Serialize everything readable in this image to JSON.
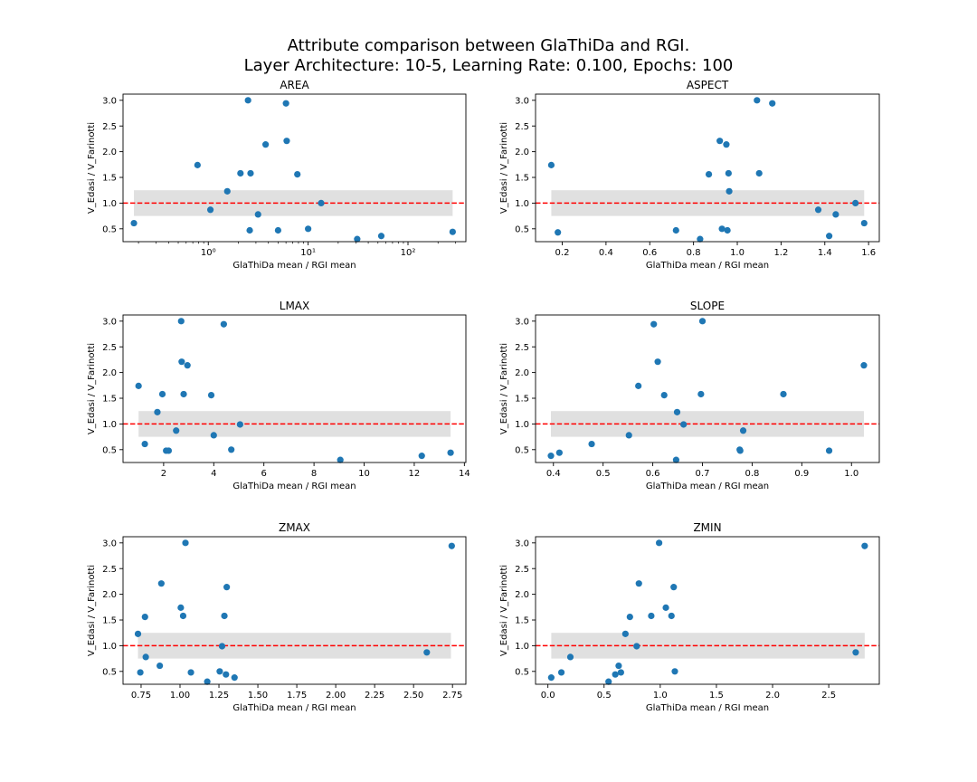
{
  "figure": {
    "title_lines": [
      "Attribute comparison between GlaThiDa and RGI.",
      "Layer Architecture: 10-5, Learning Rate: 0.100, Epochs: 100"
    ]
  },
  "colors": {
    "points": "#1f77b4",
    "reference_line": "#ff0000",
    "band": "#e0e0e0"
  },
  "chart_data": [
    {
      "type": "scatter",
      "title": "AREA",
      "xlabel": "GlaThiDa mean / RGI mean",
      "ylabel": "V_Edasi / V_Farinotti",
      "xscale": "log",
      "xlim": [
        0.14,
        380
      ],
      "ylim": [
        0.25,
        3.12
      ],
      "xticks": [
        1,
        10,
        100
      ],
      "xticklabels": [
        "10⁰",
        "10¹",
        "10²"
      ],
      "yticks": [
        0.5,
        1.0,
        1.5,
        2.0,
        2.5,
        3.0
      ],
      "yticklabels": [
        "0.5",
        "1.0",
        "1.5",
        "2.0",
        "2.5",
        "3.0"
      ],
      "reference_line": 1.0,
      "band": {
        "y": [
          0.75,
          1.25
        ],
        "x": [
          0.18,
          280
        ]
      },
      "points": [
        {
          "x": 0.18,
          "y": 0.61
        },
        {
          "x": 0.78,
          "y": 1.74
        },
        {
          "x": 1.05,
          "y": 0.87
        },
        {
          "x": 1.55,
          "y": 1.23
        },
        {
          "x": 2.1,
          "y": 1.58
        },
        {
          "x": 2.5,
          "y": 3.0
        },
        {
          "x": 2.65,
          "y": 1.58
        },
        {
          "x": 2.6,
          "y": 0.47
        },
        {
          "x": 3.15,
          "y": 0.78
        },
        {
          "x": 3.75,
          "y": 2.14
        },
        {
          "x": 5.0,
          "y": 0.47
        },
        {
          "x": 6.0,
          "y": 2.94
        },
        {
          "x": 6.1,
          "y": 2.21
        },
        {
          "x": 7.8,
          "y": 1.56
        },
        {
          "x": 10.0,
          "y": 0.5
        },
        {
          "x": 13.5,
          "y": 1.0
        },
        {
          "x": 31,
          "y": 0.3
        },
        {
          "x": 54,
          "y": 0.36
        },
        {
          "x": 280,
          "y": 0.44
        }
      ]
    },
    {
      "type": "scatter",
      "title": "ASPECT",
      "xlabel": "GlaThiDa mean / RGI mean",
      "ylabel": "V_Edasi / V_Farinotti",
      "xscale": "linear",
      "xlim": [
        0.078,
        1.649
      ],
      "ylim": [
        0.25,
        3.12
      ],
      "xticks": [
        0.2,
        0.4,
        0.6,
        0.8,
        1.0,
        1.2,
        1.4,
        1.6
      ],
      "xticklabels": [
        "0.2",
        "0.4",
        "0.6",
        "0.8",
        "1.0",
        "1.2",
        "1.4",
        "1.6"
      ],
      "yticks": [
        0.5,
        1.0,
        1.5,
        2.0,
        2.5,
        3.0
      ],
      "yticklabels": [
        "0.5",
        "1.0",
        "1.5",
        "2.0",
        "2.5",
        "3.0"
      ],
      "reference_line": 1.0,
      "band": {
        "y": [
          0.75,
          1.25
        ],
        "x": [
          0.15,
          1.58
        ]
      },
      "points": [
        {
          "x": 0.15,
          "y": 1.74
        },
        {
          "x": 0.18,
          "y": 0.43
        },
        {
          "x": 0.72,
          "y": 0.47
        },
        {
          "x": 0.83,
          "y": 0.3
        },
        {
          "x": 0.87,
          "y": 1.56
        },
        {
          "x": 0.92,
          "y": 2.21
        },
        {
          "x": 0.93,
          "y": 0.5
        },
        {
          "x": 0.95,
          "y": 2.14
        },
        {
          "x": 0.955,
          "y": 0.47
        },
        {
          "x": 0.96,
          "y": 1.58
        },
        {
          "x": 0.963,
          "y": 1.23
        },
        {
          "x": 1.09,
          "y": 3.0
        },
        {
          "x": 1.1,
          "y": 1.58
        },
        {
          "x": 1.16,
          "y": 2.94
        },
        {
          "x": 1.37,
          "y": 0.87
        },
        {
          "x": 1.42,
          "y": 0.36
        },
        {
          "x": 1.45,
          "y": 0.78
        },
        {
          "x": 1.54,
          "y": 1.0
        },
        {
          "x": 1.58,
          "y": 0.61
        }
      ]
    },
    {
      "type": "scatter",
      "title": "LMAX",
      "xlabel": "GlaThiDa mean / RGI mean",
      "ylabel": "V_Edasi / V_Farinotti",
      "xscale": "linear",
      "xlim": [
        0.38,
        14.06
      ],
      "ylim": [
        0.25,
        3.12
      ],
      "xticks": [
        2,
        4,
        6,
        8,
        10,
        12,
        14
      ],
      "xticklabels": [
        "2",
        "4",
        "6",
        "8",
        "10",
        "12",
        "14"
      ],
      "yticks": [
        0.5,
        1.0,
        1.5,
        2.0,
        2.5,
        3.0
      ],
      "yticklabels": [
        "0.5",
        "1.0",
        "1.5",
        "2.0",
        "2.5",
        "3.0"
      ],
      "reference_line": 1.0,
      "band": {
        "y": [
          0.75,
          1.25
        ],
        "x": [
          1.0,
          13.45
        ]
      },
      "points": [
        {
          "x": 1.0,
          "y": 1.74
        },
        {
          "x": 1.25,
          "y": 0.61
        },
        {
          "x": 1.75,
          "y": 1.23
        },
        {
          "x": 1.95,
          "y": 1.58
        },
        {
          "x": 2.1,
          "y": 0.48
        },
        {
          "x": 2.2,
          "y": 0.48
        },
        {
          "x": 2.5,
          "y": 0.87
        },
        {
          "x": 2.7,
          "y": 3.0
        },
        {
          "x": 2.72,
          "y": 2.21
        },
        {
          "x": 2.8,
          "y": 1.58
        },
        {
          "x": 2.95,
          "y": 2.14
        },
        {
          "x": 3.9,
          "y": 1.56
        },
        {
          "x": 4.0,
          "y": 0.78
        },
        {
          "x": 4.4,
          "y": 2.94
        },
        {
          "x": 4.7,
          "y": 0.5
        },
        {
          "x": 5.05,
          "y": 0.99
        },
        {
          "x": 9.05,
          "y": 0.3
        },
        {
          "x": 12.3,
          "y": 0.38
        },
        {
          "x": 13.45,
          "y": 0.44
        }
      ]
    },
    {
      "type": "scatter",
      "title": "SLOPE",
      "xlabel": "GlaThiDa mean / RGI mean",
      "ylabel": "V_Edasi / V_Farinotti",
      "xscale": "linear",
      "xlim": [
        0.364,
        1.056
      ],
      "ylim": [
        0.25,
        3.12
      ],
      "xticks": [
        0.4,
        0.5,
        0.6,
        0.7,
        0.8,
        0.9,
        1.0
      ],
      "xticklabels": [
        "0.4",
        "0.5",
        "0.6",
        "0.7",
        "0.8",
        "0.9",
        "1.0"
      ],
      "yticks": [
        0.5,
        1.0,
        1.5,
        2.0,
        2.5,
        3.0
      ],
      "yticklabels": [
        "0.5",
        "1.0",
        "1.5",
        "2.0",
        "2.5",
        "3.0"
      ],
      "reference_line": 1.0,
      "band": {
        "y": [
          0.75,
          1.25
        ],
        "x": [
          0.395,
          1.025
        ]
      },
      "points": [
        {
          "x": 0.395,
          "y": 0.38
        },
        {
          "x": 0.412,
          "y": 0.44
        },
        {
          "x": 0.477,
          "y": 0.61
        },
        {
          "x": 0.552,
          "y": 0.78
        },
        {
          "x": 0.571,
          "y": 1.74
        },
        {
          "x": 0.602,
          "y": 2.94
        },
        {
          "x": 0.61,
          "y": 2.21
        },
        {
          "x": 0.623,
          "y": 1.56
        },
        {
          "x": 0.647,
          "y": 0.3
        },
        {
          "x": 0.649,
          "y": 1.23
        },
        {
          "x": 0.662,
          "y": 0.99
        },
        {
          "x": 0.697,
          "y": 1.58
        },
        {
          "x": 0.7,
          "y": 3.0
        },
        {
          "x": 0.775,
          "y": 0.5
        },
        {
          "x": 0.776,
          "y": 0.48
        },
        {
          "x": 0.782,
          "y": 0.87
        },
        {
          "x": 0.863,
          "y": 1.58
        },
        {
          "x": 0.955,
          "y": 0.48
        },
        {
          "x": 1.025,
          "y": 2.14
        }
      ]
    },
    {
      "type": "scatter",
      "title": "ZMAX",
      "xlabel": "GlaThiDa mean / RGI mean",
      "ylabel": "V_Edasi / V_Farinotti",
      "xscale": "linear",
      "xlim": [
        0.634,
        2.836
      ],
      "ylim": [
        0.25,
        3.12
      ],
      "xticks": [
        0.75,
        1.0,
        1.25,
        1.5,
        1.75,
        2.0,
        2.25,
        2.5,
        2.75
      ],
      "xticklabels": [
        "0.75",
        "1.00",
        "1.25",
        "1.50",
        "1.75",
        "2.00",
        "2.25",
        "2.50",
        "2.75"
      ],
      "yticks": [
        0.5,
        1.0,
        1.5,
        2.0,
        2.5,
        3.0
      ],
      "yticklabels": [
        "0.5",
        "1.0",
        "1.5",
        "2.0",
        "2.5",
        "3.0"
      ],
      "reference_line": 1.0,
      "band": {
        "y": [
          0.75,
          1.25
        ],
        "x": [
          0.73,
          2.74
        ]
      },
      "points": [
        {
          "x": 0.73,
          "y": 1.23
        },
        {
          "x": 0.745,
          "y": 0.48
        },
        {
          "x": 0.775,
          "y": 1.56
        },
        {
          "x": 0.78,
          "y": 0.78
        },
        {
          "x": 0.87,
          "y": 0.61
        },
        {
          "x": 0.88,
          "y": 2.21
        },
        {
          "x": 1.005,
          "y": 1.74
        },
        {
          "x": 1.02,
          "y": 1.58
        },
        {
          "x": 1.035,
          "y": 3.0
        },
        {
          "x": 1.07,
          "y": 0.48
        },
        {
          "x": 1.175,
          "y": 0.3
        },
        {
          "x": 1.255,
          "y": 0.5
        },
        {
          "x": 1.27,
          "y": 0.99
        },
        {
          "x": 1.285,
          "y": 1.58
        },
        {
          "x": 1.295,
          "y": 0.44
        },
        {
          "x": 1.3,
          "y": 2.14
        },
        {
          "x": 1.35,
          "y": 0.38
        },
        {
          "x": 2.585,
          "y": 0.87
        },
        {
          "x": 2.745,
          "y": 2.94
        }
      ]
    },
    {
      "type": "scatter",
      "title": "ZMIN",
      "xlabel": "GlaThiDa mean / RGI mean",
      "ylabel": "V_Edasi / V_Farinotti",
      "xscale": "linear",
      "xlim": [
        -0.11,
        2.95
      ],
      "ylim": [
        0.25,
        3.12
      ],
      "xticks": [
        0.0,
        0.5,
        1.0,
        1.5,
        2.0,
        2.5
      ],
      "xticklabels": [
        "0.0",
        "0.5",
        "1.0",
        "1.5",
        "2.0",
        "2.5"
      ],
      "yticks": [
        0.5,
        1.0,
        1.5,
        2.0,
        2.5,
        3.0
      ],
      "yticklabels": [
        "0.5",
        "1.0",
        "1.5",
        "2.0",
        "2.5",
        "3.0"
      ],
      "reference_line": 1.0,
      "band": {
        "y": [
          0.75,
          1.25
        ],
        "x": [
          0.03,
          2.82
        ]
      },
      "points": [
        {
          "x": 0.03,
          "y": 0.38
        },
        {
          "x": 0.12,
          "y": 0.48
        },
        {
          "x": 0.2,
          "y": 0.78
        },
        {
          "x": 0.54,
          "y": 0.3
        },
        {
          "x": 0.6,
          "y": 0.44
        },
        {
          "x": 0.63,
          "y": 0.61
        },
        {
          "x": 0.65,
          "y": 0.48
        },
        {
          "x": 0.69,
          "y": 1.23
        },
        {
          "x": 0.73,
          "y": 1.56
        },
        {
          "x": 0.79,
          "y": 0.99
        },
        {
          "x": 0.81,
          "y": 2.21
        },
        {
          "x": 0.92,
          "y": 1.58
        },
        {
          "x": 0.99,
          "y": 3.0
        },
        {
          "x": 1.05,
          "y": 1.74
        },
        {
          "x": 1.1,
          "y": 1.58
        },
        {
          "x": 1.12,
          "y": 2.14
        },
        {
          "x": 1.13,
          "y": 0.5
        },
        {
          "x": 2.74,
          "y": 0.87
        },
        {
          "x": 2.82,
          "y": 2.94
        }
      ]
    }
  ]
}
